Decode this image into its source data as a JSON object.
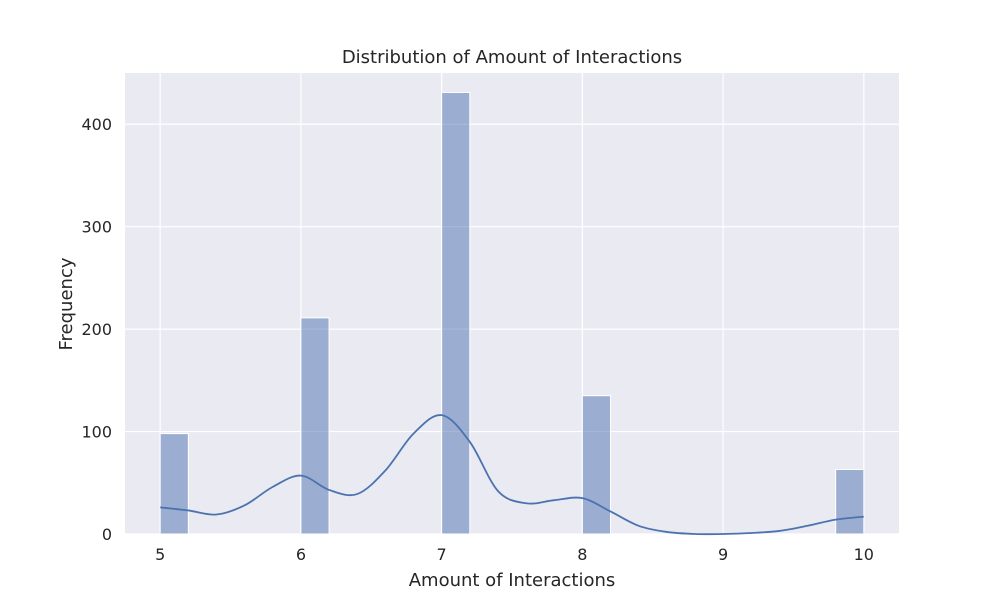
{
  "chart_data": {
    "type": "bar",
    "title": "Distribution of Amount of Interactions",
    "xlabel": "Amount of Interactions",
    "ylabel": "Frequency",
    "xlim": [
      4.75,
      10.25
    ],
    "ylim": [
      0,
      450
    ],
    "x_ticks": [
      5,
      6,
      7,
      8,
      9,
      10
    ],
    "y_ticks": [
      0,
      100,
      200,
      300,
      400
    ],
    "bin_width": 0.2,
    "bars": [
      {
        "x_start": 5.0,
        "x_end": 5.2,
        "value": 98
      },
      {
        "x_start": 6.0,
        "x_end": 6.2,
        "value": 211
      },
      {
        "x_start": 7.0,
        "x_end": 7.2,
        "value": 431
      },
      {
        "x_start": 8.0,
        "x_end": 8.2,
        "value": 135
      },
      {
        "x_start": 9.8,
        "x_end": 10.0,
        "value": 63
      }
    ],
    "kde": {
      "x": [
        5.0,
        5.2,
        5.4,
        5.6,
        5.8,
        6.0,
        6.2,
        6.4,
        6.6,
        6.8,
        7.0,
        7.2,
        7.4,
        7.6,
        7.8,
        8.0,
        8.2,
        8.4,
        8.6,
        8.8,
        9.0,
        9.2,
        9.4,
        9.6,
        9.8,
        10.0
      ],
      "y": [
        26,
        23,
        19,
        28,
        46,
        57,
        43,
        39,
        62,
        98,
        116,
        90,
        42,
        30,
        33,
        35,
        22,
        8,
        2,
        0,
        0,
        1,
        3,
        8,
        14,
        17
      ]
    },
    "grid": true,
    "colors": {
      "background": "#eaeaf2",
      "bar_fill": "#4c72b0",
      "bar_opacity": "0.5",
      "kde_line": "#4c72b0",
      "grid": "#ffffff"
    }
  }
}
